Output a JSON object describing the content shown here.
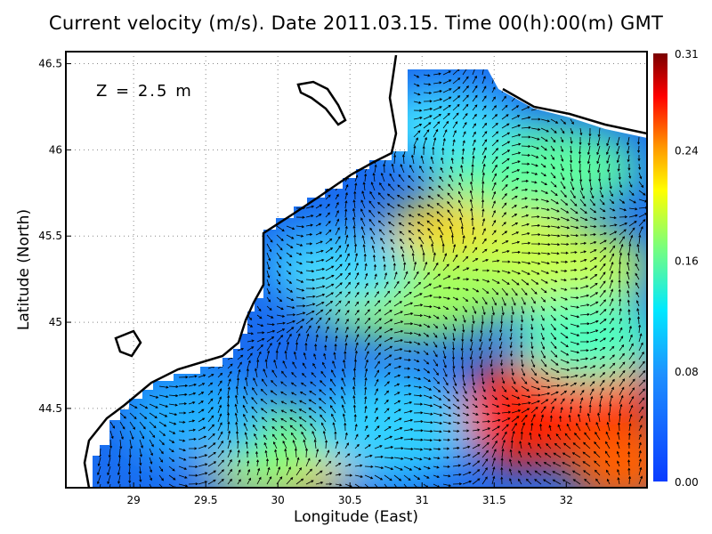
{
  "title": "Current velocity (m/s). Date 2011.03.15. Time 00(h):00(m) GMT",
  "depth_label": "Z = 2.5 m",
  "chart_data": {
    "type": "heatmap",
    "subtype": "vector field map",
    "xlabel": "Longitude (East)",
    "ylabel": "Latitude (North)",
    "xlim": [
      28.53,
      32.56
    ],
    "ylim": [
      44.04,
      46.57
    ],
    "xticks": [
      "29",
      "29.5",
      "30",
      "30.5",
      "31",
      "31.5",
      "32"
    ],
    "yticks": [
      "44.5",
      "45",
      "45.5",
      "46",
      "46.5"
    ],
    "grid": true,
    "colorbar": {
      "min": 0.0,
      "max": 0.31,
      "ticks": [
        "0.00",
        "0.08",
        "0.16",
        "0.24",
        "0.31"
      ],
      "colormap": "jet",
      "colors": [
        "#0a3cff",
        "#00e0ff",
        "#7cff7a",
        "#ffff00",
        "#ff8000",
        "#ff0000",
        "#7a0000"
      ]
    },
    "land_color": "#ffffff",
    "coastline_color": "#000000"
  }
}
